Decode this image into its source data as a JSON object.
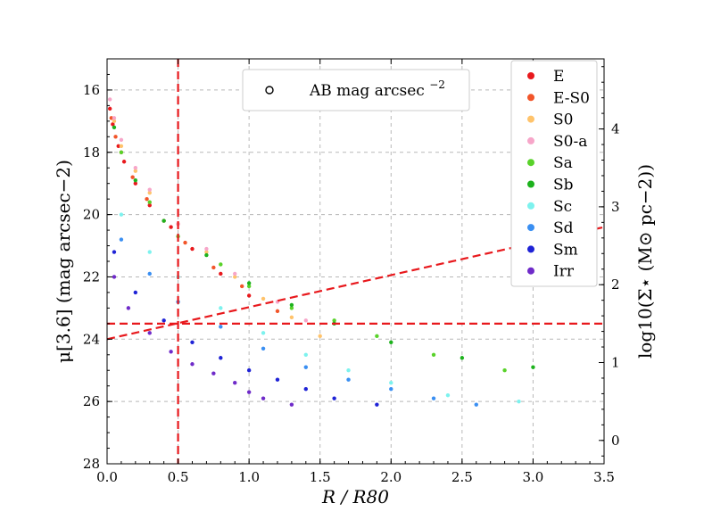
{
  "chart_data": {
    "type": "scatter",
    "title": "",
    "xlabel": "R / R80",
    "ylabel": "μ[3.6] (mag arcsec−2)",
    "y2label": "log10(Σ⋆ (M⊙ pc−2))",
    "xlim": [
      0.0,
      3.5
    ],
    "ylim": [
      28,
      15
    ],
    "y2lim": [
      -0.3,
      4.9
    ],
    "xticks": [
      "0.0",
      "0.5",
      "1.0",
      "1.5",
      "2.0",
      "2.5",
      "3.0",
      "3.5"
    ],
    "yticks": [
      "16",
      "18",
      "20",
      "22",
      "24",
      "26",
      "28"
    ],
    "y2ticks": [
      "0",
      "1",
      "2",
      "3",
      "4"
    ],
    "grid": true,
    "reference_lines": [
      {
        "type": "vertical",
        "x": 0.5,
        "color": "#e8191d",
        "style": "dashed"
      },
      {
        "type": "horizontal",
        "y": 23.5,
        "color": "#e8191d",
        "style": "dashed"
      },
      {
        "type": "sloped",
        "x1": 0.0,
        "y1": 24.0,
        "x2": 3.5,
        "y2": 20.4,
        "color": "#e8191d",
        "style": "dashed"
      }
    ],
    "marker_legend": {
      "label": "AB mag arcsec",
      "superscript": "−2",
      "marker": "open-circle",
      "position": "top-center"
    },
    "legend_position": "top-right",
    "series": [
      {
        "name": "E",
        "color": "#e8191d",
        "points": [
          [
            0.02,
            16.6
          ],
          [
            0.04,
            17.1
          ],
          [
            0.08,
            17.8
          ],
          [
            0.12,
            18.3
          ],
          [
            0.2,
            19.0
          ],
          [
            0.3,
            19.7
          ],
          [
            0.45,
            20.4
          ],
          [
            0.6,
            21.1
          ],
          [
            0.8,
            21.9
          ],
          [
            1.0,
            22.6
          ]
        ]
      },
      {
        "name": "E-S0",
        "color": "#f2552a",
        "points": [
          [
            0.03,
            16.9
          ],
          [
            0.06,
            17.5
          ],
          [
            0.1,
            18.0
          ],
          [
            0.18,
            18.8
          ],
          [
            0.28,
            19.5
          ],
          [
            0.4,
            20.2
          ],
          [
            0.55,
            20.9
          ],
          [
            0.75,
            21.7
          ],
          [
            0.95,
            22.3
          ],
          [
            1.2,
            23.1
          ]
        ]
      },
      {
        "name": "S0",
        "color": "#ffc36b",
        "points": [
          [
            0.05,
            17.0
          ],
          [
            0.1,
            17.8
          ],
          [
            0.2,
            18.6
          ],
          [
            0.3,
            19.3
          ],
          [
            0.5,
            20.3
          ],
          [
            0.7,
            21.2
          ],
          [
            0.9,
            22.0
          ],
          [
            1.1,
            22.7
          ],
          [
            1.3,
            23.3
          ],
          [
            1.5,
            23.9
          ]
        ]
      },
      {
        "name": "S0-a",
        "color": "#f7a6c9",
        "points": [
          [
            0.02,
            16.3
          ],
          [
            0.05,
            16.9
          ],
          [
            0.1,
            17.6
          ],
          [
            0.2,
            18.5
          ],
          [
            0.3,
            19.2
          ],
          [
            0.5,
            20.3
          ],
          [
            0.7,
            21.1
          ],
          [
            0.9,
            21.9
          ],
          [
            1.2,
            22.8
          ],
          [
            1.4,
            23.4
          ]
        ]
      },
      {
        "name": "Sa",
        "color": "#59d22a",
        "points": [
          [
            0.1,
            18.0
          ],
          [
            0.3,
            19.6
          ],
          [
            0.5,
            20.7
          ],
          [
            0.8,
            21.6
          ],
          [
            1.0,
            22.3
          ],
          [
            1.3,
            23.0
          ],
          [
            1.6,
            23.4
          ],
          [
            1.9,
            23.9
          ],
          [
            2.3,
            24.5
          ],
          [
            2.8,
            25.0
          ]
        ]
      },
      {
        "name": "Sb",
        "color": "#1db21d",
        "points": [
          [
            0.05,
            17.2
          ],
          [
            0.2,
            18.9
          ],
          [
            0.4,
            20.2
          ],
          [
            0.7,
            21.3
          ],
          [
            1.0,
            22.2
          ],
          [
            1.3,
            22.9
          ],
          [
            1.6,
            23.5
          ],
          [
            2.0,
            24.1
          ],
          [
            2.5,
            24.6
          ],
          [
            3.0,
            24.9
          ]
        ]
      },
      {
        "name": "Sc",
        "color": "#7df2ee",
        "points": [
          [
            0.1,
            20.0
          ],
          [
            0.3,
            21.2
          ],
          [
            0.5,
            22.0
          ],
          [
            0.8,
            23.0
          ],
          [
            1.1,
            23.8
          ],
          [
            1.4,
            24.5
          ],
          [
            1.7,
            25.0
          ],
          [
            2.0,
            25.4
          ],
          [
            2.4,
            25.8
          ],
          [
            2.9,
            26.0
          ]
        ]
      },
      {
        "name": "Sd",
        "color": "#3a8ff2",
        "points": [
          [
            0.1,
            20.8
          ],
          [
            0.3,
            21.9
          ],
          [
            0.5,
            22.8
          ],
          [
            0.8,
            23.6
          ],
          [
            1.1,
            24.3
          ],
          [
            1.4,
            24.9
          ],
          [
            1.7,
            25.3
          ],
          [
            2.0,
            25.6
          ],
          [
            2.3,
            25.9
          ],
          [
            2.6,
            26.1
          ]
        ]
      },
      {
        "name": "Sm",
        "color": "#1f23d6",
        "points": [
          [
            0.05,
            21.2
          ],
          [
            0.2,
            22.5
          ],
          [
            0.4,
            23.4
          ],
          [
            0.6,
            24.1
          ],
          [
            0.8,
            24.6
          ],
          [
            1.0,
            25.0
          ],
          [
            1.2,
            25.3
          ],
          [
            1.4,
            25.6
          ],
          [
            1.6,
            25.9
          ],
          [
            1.9,
            26.1
          ]
        ]
      },
      {
        "name": "Irr",
        "color": "#6f2bc9",
        "points": [
          [
            0.05,
            22.0
          ],
          [
            0.15,
            23.0
          ],
          [
            0.3,
            23.8
          ],
          [
            0.45,
            24.4
          ],
          [
            0.6,
            24.8
          ],
          [
            0.75,
            25.1
          ],
          [
            0.9,
            25.4
          ],
          [
            1.0,
            25.7
          ],
          [
            1.1,
            25.9
          ],
          [
            1.3,
            26.1
          ]
        ]
      }
    ]
  }
}
